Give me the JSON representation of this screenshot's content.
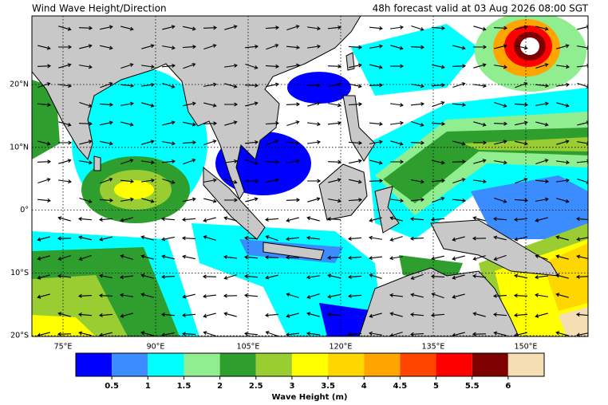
{
  "header": {
    "title": "Wind Wave Height/Direction",
    "subtitle": "48h forecast valid at 03 Aug 2026 08:00 SGT"
  },
  "map": {
    "lon_labels": [
      "75°E",
      "90°E",
      "105°E",
      "120°E",
      "135°E",
      "150°E"
    ],
    "lat_labels": [
      "20°N",
      "10°N",
      "0°",
      "10°S",
      "20°S"
    ]
  },
  "colorbar": {
    "title": "Wave Height (m)",
    "ticks": [
      0.5,
      1,
      1.5,
      2,
      2.5,
      3,
      3.5,
      4,
      4.5,
      5,
      5.5,
      6
    ],
    "colors": [
      "#0000ff",
      "#3a8cff",
      "#00ffff",
      "#90ee90",
      "#2e9e2e",
      "#9acd32",
      "#ffff00",
      "#ffd700",
      "#ffa500",
      "#ff4500",
      "#ff0000",
      "#7f0000",
      "#f5deb3"
    ]
  }
}
